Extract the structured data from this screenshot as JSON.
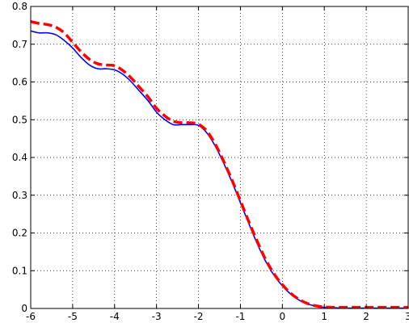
{
  "chart_data": {
    "type": "line",
    "title": "",
    "xlabel": "",
    "ylabel": "",
    "xlim": [
      -6,
      3
    ],
    "ylim": [
      0,
      0.8
    ],
    "grid": true,
    "grid_style": "dotted",
    "x_ticks": [
      -6,
      -5,
      -4,
      -3,
      -2,
      -1,
      0,
      1,
      2,
      3
    ],
    "x_tick_labels": [
      "-6",
      "-5",
      "-4",
      "-3",
      "-2",
      "-1",
      "0",
      "1",
      "2",
      "3"
    ],
    "y_ticks": [
      0,
      0.1,
      0.2,
      0.3,
      0.4,
      0.5,
      0.6,
      0.7,
      0.8
    ],
    "y_tick_labels": [
      "0",
      "0.1",
      "0.2",
      "0.3",
      "0.4",
      "0.5",
      "0.6",
      "0.7",
      "0.8"
    ],
    "series": [
      {
        "color": "#0000ff",
        "style": "solid",
        "x": [
          -6,
          -5.8,
          -5.6,
          -5.4,
          -5.2,
          -5.0,
          -4.8,
          -4.6,
          -4.4,
          -4.2,
          -4.0,
          -3.8,
          -3.6,
          -3.4,
          -3.2,
          -3.0,
          -2.8,
          -2.6,
          -2.4,
          -2.2,
          -2.0,
          -1.8,
          -1.6,
          -1.4,
          -1.2,
          -1.0,
          -0.8,
          -0.6,
          -0.4,
          -0.2,
          0.0,
          0.2,
          0.4,
          0.6,
          0.8,
          1.0,
          1.2,
          1.4,
          1.6,
          2.0,
          2.5,
          3.0
        ],
        "y": [
          0.735,
          0.73,
          0.73,
          0.725,
          0.71,
          0.69,
          0.665,
          0.645,
          0.635,
          0.635,
          0.632,
          0.62,
          0.6,
          0.575,
          0.55,
          0.52,
          0.5,
          0.487,
          0.487,
          0.487,
          0.485,
          0.465,
          0.43,
          0.385,
          0.335,
          0.28,
          0.225,
          0.172,
          0.125,
          0.088,
          0.06,
          0.038,
          0.022,
          0.012,
          0.006,
          0.003,
          0.002,
          0.001,
          0.001,
          0.001,
          0.001,
          0.001
        ]
      },
      {
        "color": "#ff0000",
        "style": "dashed",
        "x": [
          -6,
          -5.8,
          -5.6,
          -5.4,
          -5.2,
          -5.0,
          -4.8,
          -4.6,
          -4.4,
          -4.2,
          -4.0,
          -3.8,
          -3.6,
          -3.4,
          -3.2,
          -3.0,
          -2.8,
          -2.6,
          -2.4,
          -2.2,
          -2.0,
          -1.8,
          -1.6,
          -1.4,
          -1.2,
          -1.0,
          -0.8,
          -0.6,
          -0.4,
          -0.2,
          0.0,
          0.2,
          0.4,
          0.6,
          0.8,
          1.0,
          1.2,
          1.4,
          1.6,
          2.0,
          2.5,
          3.0
        ],
        "y": [
          0.76,
          0.755,
          0.752,
          0.745,
          0.73,
          0.705,
          0.68,
          0.66,
          0.648,
          0.645,
          0.643,
          0.63,
          0.61,
          0.585,
          0.56,
          0.53,
          0.51,
          0.496,
          0.492,
          0.492,
          0.488,
          0.47,
          0.435,
          0.39,
          0.34,
          0.285,
          0.23,
          0.178,
          0.13,
          0.092,
          0.063,
          0.04,
          0.024,
          0.013,
          0.007,
          0.004,
          0.003,
          0.003,
          0.003,
          0.003,
          0.003,
          0.003
        ]
      }
    ]
  }
}
